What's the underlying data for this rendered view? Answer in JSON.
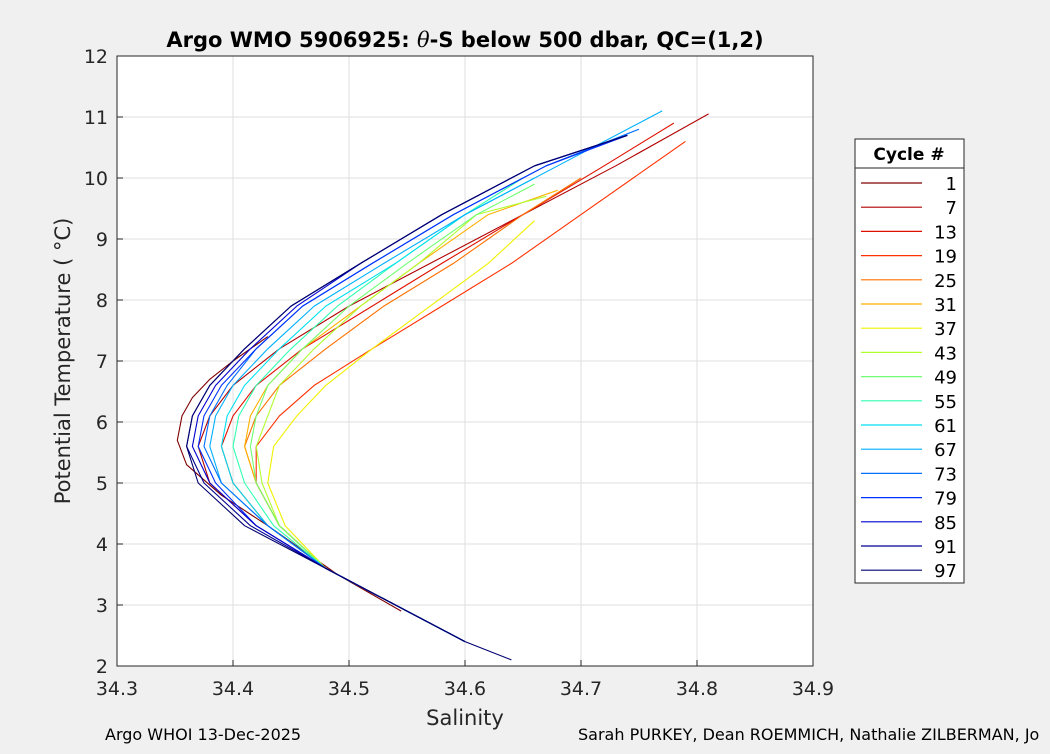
{
  "chart_data": {
    "type": "line",
    "title": "Argo WMO 5906925: θ-S below 500 dbar,  QC=(1,2)",
    "title_parts": [
      "Argo WMO 5906925: ",
      "θ",
      "-S below 500 dbar,  QC=(1,2)"
    ],
    "xlabel": "Salinity",
    "ylabel": "Potential Temperature ( °C)",
    "xlim": [
      34.3,
      34.9
    ],
    "ylim": [
      2,
      12
    ],
    "x_ticks": [
      "34.3",
      "34.4",
      "34.5",
      "34.6",
      "34.7",
      "34.8",
      "34.9"
    ],
    "y_ticks": [
      "2",
      "3",
      "4",
      "5",
      "6",
      "7",
      "8",
      "9",
      "10",
      "11",
      "12"
    ],
    "grid": true,
    "legend": {
      "title": "Cycle #",
      "placement": "right, outside",
      "entries": [
        {
          "label": "1",
          "color": "#800000"
        },
        {
          "label": "7",
          "color": "#b00000"
        },
        {
          "label": "13",
          "color": "#e01000"
        },
        {
          "label": "19",
          "color": "#ff3000"
        },
        {
          "label": "25",
          "color": "#ff7000"
        },
        {
          "label": "31",
          "color": "#ffb000"
        },
        {
          "label": "37",
          "color": "#f0f000"
        },
        {
          "label": "43",
          "color": "#b0ff30"
        },
        {
          "label": "49",
          "color": "#70ff70"
        },
        {
          "label": "55",
          "color": "#30ffb0"
        },
        {
          "label": "61",
          "color": "#00e0f0"
        },
        {
          "label": "67",
          "color": "#00b0ff"
        },
        {
          "label": "73",
          "color": "#0070ff"
        },
        {
          "label": "79",
          "color": "#0030ff"
        },
        {
          "label": "85",
          "color": "#0000d0"
        },
        {
          "label": "91",
          "color": "#000090"
        },
        {
          "label": "97",
          "color": "#000070"
        }
      ]
    },
    "series": [
      {
        "name": "1",
        "color": "#800000",
        "x": [
          34.545,
          34.49,
          34.43,
          34.39,
          34.36,
          34.352,
          34.356,
          34.365,
          34.38,
          34.4,
          34.43
        ],
        "y": [
          2.9,
          3.5,
          4.3,
          4.8,
          5.3,
          5.7,
          6.1,
          6.4,
          6.7,
          7.0,
          7.4
        ]
      },
      {
        "name": "7",
        "color": "#b00000",
        "x": [
          34.6,
          34.54,
          34.48,
          34.42,
          34.38,
          34.37,
          34.38,
          34.4,
          34.44,
          34.5,
          34.57,
          34.65,
          34.73,
          34.81
        ],
        "y": [
          2.4,
          3.0,
          3.6,
          4.3,
          5.0,
          5.6,
          6.1,
          6.6,
          7.2,
          7.9,
          8.6,
          9.4,
          10.2,
          11.05
        ]
      },
      {
        "name": "13",
        "color": "#e01000",
        "x": [
          34.6,
          34.54,
          34.48,
          34.43,
          34.4,
          34.39,
          34.4,
          34.42,
          34.46,
          34.52,
          34.58,
          34.65,
          34.72,
          34.78
        ],
        "y": [
          2.4,
          3.0,
          3.6,
          4.3,
          5.0,
          5.6,
          6.1,
          6.6,
          7.2,
          7.9,
          8.6,
          9.4,
          10.2,
          10.9
        ]
      },
      {
        "name": "19",
        "color": "#ff3000",
        "x": [
          34.6,
          34.54,
          34.48,
          34.44,
          34.42,
          34.42,
          34.44,
          34.47,
          34.52,
          34.58,
          34.64,
          34.7,
          34.76,
          34.79
        ],
        "y": [
          2.4,
          3.0,
          3.6,
          4.3,
          5.0,
          5.6,
          6.1,
          6.6,
          7.2,
          7.9,
          8.6,
          9.4,
          10.2,
          10.6
        ]
      },
      {
        "name": "25",
        "color": "#ff7000",
        "x": [
          34.6,
          34.54,
          34.48,
          34.44,
          34.42,
          34.41,
          34.42,
          34.44,
          34.48,
          34.53,
          34.59,
          34.65,
          34.7
        ],
        "y": [
          2.4,
          3.0,
          3.6,
          4.3,
          5.0,
          5.6,
          6.1,
          6.6,
          7.2,
          7.9,
          8.6,
          9.4,
          10.0
        ]
      },
      {
        "name": "31",
        "color": "#ffb000",
        "x": [
          34.6,
          34.54,
          34.48,
          34.44,
          34.42,
          34.41,
          34.415,
          34.43,
          34.46,
          34.51,
          34.56,
          34.62,
          34.68
        ],
        "y": [
          2.4,
          3.0,
          3.6,
          4.3,
          5.0,
          5.6,
          6.1,
          6.6,
          7.2,
          7.9,
          8.6,
          9.4,
          9.8
        ]
      },
      {
        "name": "37",
        "color": "#f0f000",
        "x": [
          34.6,
          34.54,
          34.48,
          34.445,
          34.43,
          34.435,
          34.455,
          34.48,
          34.52,
          34.57,
          34.62,
          34.66
        ],
        "y": [
          2.4,
          3.0,
          3.6,
          4.3,
          5.0,
          5.6,
          6.1,
          6.6,
          7.2,
          7.9,
          8.6,
          9.3
        ]
      },
      {
        "name": "43",
        "color": "#b0ff30",
        "x": [
          34.6,
          34.54,
          34.48,
          34.44,
          34.425,
          34.42,
          34.43,
          34.44,
          34.47,
          34.51,
          34.56,
          34.61,
          34.67
        ],
        "y": [
          2.4,
          3.0,
          3.6,
          4.3,
          5.0,
          5.6,
          6.1,
          6.6,
          7.2,
          7.9,
          8.6,
          9.4,
          9.7
        ]
      },
      {
        "name": "49",
        "color": "#70ff70",
        "x": [
          34.6,
          34.54,
          34.48,
          34.44,
          34.42,
          34.415,
          34.42,
          34.43,
          34.46,
          34.5,
          34.55,
          34.61,
          34.66
        ],
        "y": [
          2.4,
          3.0,
          3.6,
          4.3,
          5.0,
          5.6,
          6.1,
          6.6,
          7.2,
          7.9,
          8.6,
          9.4,
          9.9
        ]
      },
      {
        "name": "55",
        "color": "#30ffb0",
        "x": [
          34.6,
          34.54,
          34.48,
          34.435,
          34.41,
          34.4,
          34.405,
          34.42,
          34.45,
          34.49,
          34.54,
          34.6,
          34.65
        ],
        "y": [
          2.4,
          3.0,
          3.6,
          4.3,
          5.0,
          5.6,
          6.1,
          6.6,
          7.2,
          7.9,
          8.6,
          9.4,
          10.0
        ]
      },
      {
        "name": "61",
        "color": "#00e0f0",
        "x": [
          34.6,
          34.54,
          34.48,
          34.43,
          34.4,
          34.39,
          34.395,
          34.41,
          34.44,
          34.48,
          34.54,
          34.6,
          34.66
        ],
        "y": [
          2.4,
          3.0,
          3.6,
          4.3,
          5.0,
          5.6,
          6.1,
          6.6,
          7.2,
          7.9,
          8.6,
          9.4,
          10.0
        ]
      },
      {
        "name": "67",
        "color": "#00b0ff",
        "x": [
          34.6,
          34.54,
          34.48,
          34.43,
          34.39,
          34.38,
          34.385,
          34.4,
          34.43,
          34.47,
          34.53,
          34.6,
          34.68,
          34.77
        ],
        "y": [
          2.4,
          3.0,
          3.6,
          4.3,
          5.0,
          5.6,
          6.1,
          6.6,
          7.2,
          7.9,
          8.6,
          9.4,
          10.2,
          11.1
        ]
      },
      {
        "name": "73",
        "color": "#0070ff",
        "x": [
          34.6,
          34.54,
          34.48,
          34.43,
          34.39,
          34.375,
          34.38,
          34.395,
          34.42,
          34.46,
          34.52,
          34.59,
          34.67,
          34.75
        ],
        "y": [
          2.4,
          3.0,
          3.6,
          4.3,
          5.0,
          5.6,
          6.1,
          6.6,
          7.2,
          7.9,
          8.6,
          9.4,
          10.2,
          10.8
        ]
      },
      {
        "name": "79",
        "color": "#0030ff",
        "x": [
          34.6,
          34.54,
          34.48,
          34.42,
          34.385,
          34.37,
          34.375,
          34.39,
          34.42,
          34.46,
          34.52,
          34.59,
          34.67,
          34.74
        ],
        "y": [
          2.4,
          3.0,
          3.6,
          4.3,
          5.0,
          5.6,
          6.1,
          6.6,
          7.2,
          7.9,
          8.6,
          9.4,
          10.2,
          10.7
        ]
      },
      {
        "name": "85",
        "color": "#0000d0",
        "x": [
          34.6,
          34.54,
          34.48,
          34.42,
          34.38,
          34.365,
          34.37,
          34.385,
          34.415,
          34.455,
          34.51,
          34.58,
          34.66,
          34.74
        ],
        "y": [
          2.4,
          3.0,
          3.6,
          4.3,
          5.0,
          5.6,
          6.1,
          6.6,
          7.2,
          7.9,
          8.6,
          9.4,
          10.2,
          10.7
        ]
      },
      {
        "name": "91",
        "color": "#000090",
        "x": [
          34.6,
          34.54,
          34.48,
          34.415,
          34.375,
          34.36,
          34.365,
          34.38,
          34.41,
          34.45,
          34.51,
          34.58,
          34.66,
          34.74
        ],
        "y": [
          2.4,
          3.0,
          3.6,
          4.3,
          5.0,
          5.6,
          6.1,
          6.6,
          7.2,
          7.9,
          8.6,
          9.4,
          10.2,
          10.7
        ]
      },
      {
        "name": "97",
        "color": "#000070",
        "x": [
          34.64,
          34.6,
          34.54,
          34.48,
          34.41,
          34.37,
          34.36,
          34.365,
          34.38,
          34.41,
          34.45,
          34.51,
          34.58,
          34.66,
          34.74
        ],
        "y": [
          2.1,
          2.4,
          3.0,
          3.6,
          4.3,
          5.0,
          5.6,
          6.1,
          6.6,
          7.2,
          7.9,
          8.6,
          9.4,
          10.2,
          10.7
        ]
      }
    ]
  },
  "footer": {
    "left": "Argo WHOI 13-Dec-2025",
    "right": "Sarah PURKEY, Dean ROEMMICH, Nathalie ZILBERMAN, Jo"
  }
}
